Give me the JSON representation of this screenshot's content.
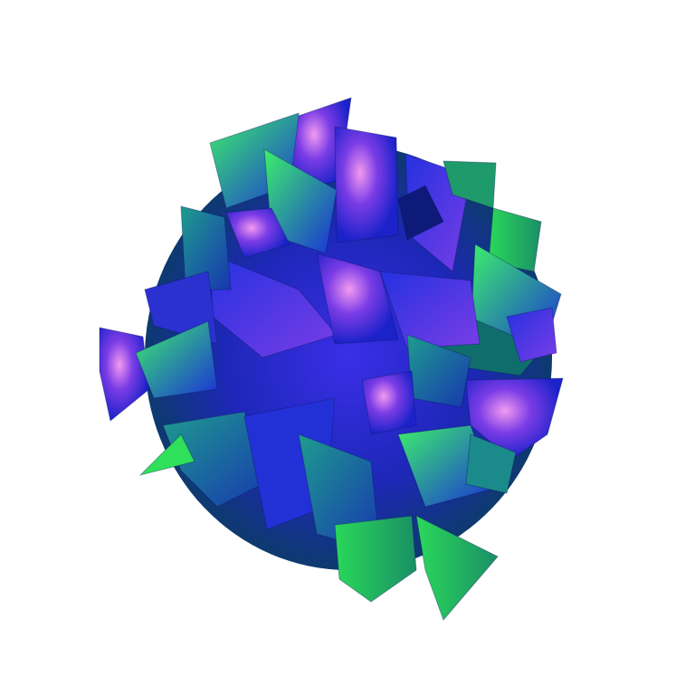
{
  "image": {
    "subject": "abstract-crystal-cluster-render",
    "background_color": "#ffffff",
    "palette": {
      "deep_blue": "#1a1fd6",
      "violet": "#6a3ae0",
      "green": "#2fe05a",
      "teal": "#1e8a8a",
      "magenta": "#e070e8",
      "navy": "#0b1670"
    }
  }
}
